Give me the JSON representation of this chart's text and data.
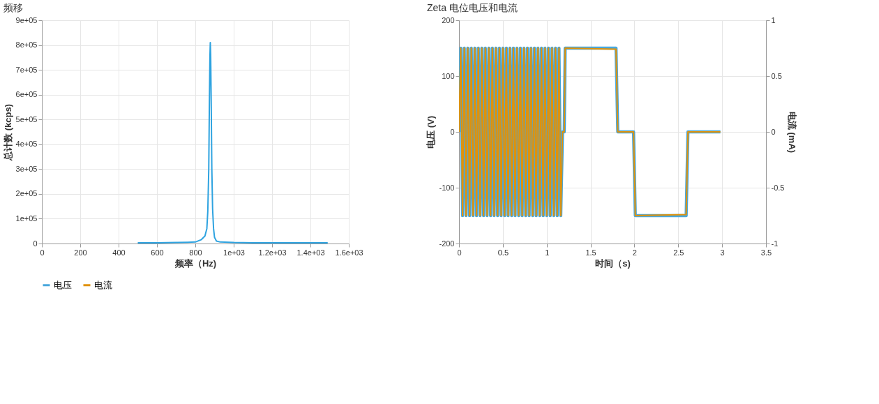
{
  "chart_data": [
    {
      "type": "line",
      "title": "频移",
      "xlabel": "频率（Hz)",
      "ylabel": "总计数 (kcps)",
      "x": [
        500,
        600,
        700,
        760,
        800,
        830,
        850,
        860,
        865,
        870,
        873,
        876,
        878,
        880,
        883,
        886,
        890,
        895,
        900,
        910,
        930,
        1000,
        1100,
        1200,
        1300,
        1400,
        1490
      ],
      "series": [
        {
          "color": "#2ea3e0",
          "values": [
            3000,
            3000,
            4000,
            5000,
            6000,
            15000,
            30000,
            60000,
            130000,
            300000,
            550000,
            750000,
            810000,
            760000,
            550000,
            300000,
            140000,
            60000,
            25000,
            10000,
            6000,
            4000,
            3000,
            3000,
            3000,
            3000,
            3000
          ]
        }
      ],
      "xlim": [
        0,
        1600
      ],
      "xticks": [
        0,
        200,
        400,
        600,
        800,
        {
          "value": 1000,
          "label": "1e+03"
        },
        {
          "value": 1200,
          "label": "1.2e+03"
        },
        {
          "value": 1400,
          "label": "1.4e+03"
        },
        {
          "value": 1600,
          "label": "1.6e+03"
        }
      ],
      "ylim": [
        0,
        900000
      ],
      "yticks": [
        0,
        {
          "value": 100000,
          "label": "1e+05"
        },
        {
          "value": 200000,
          "label": "2e+05"
        },
        {
          "value": 300000,
          "label": "3e+05"
        },
        {
          "value": 400000,
          "label": "4e+05"
        },
        {
          "value": 500000,
          "label": "5e+05"
        },
        {
          "value": 600000,
          "label": "6e+05"
        },
        {
          "value": 700000,
          "label": "7e+05"
        },
        {
          "value": 800000,
          "label": "8e+05"
        },
        {
          "value": 900000,
          "label": "9e+05"
        }
      ],
      "grid": true
    },
    {
      "type": "line",
      "title": "Zeta 电位电压和电流",
      "xlabel": "时间（s)",
      "ylabel": "电压 (V)",
      "y2label": "电流 (mA)",
      "x": [
        0,
        0.02,
        0.04,
        0.06,
        0.08,
        0.1,
        0.12,
        0.14,
        0.16,
        0.18,
        0.2,
        0.22,
        0.24,
        0.26,
        0.28,
        0.3,
        0.32,
        0.34,
        0.36,
        0.38,
        0.4,
        0.42,
        0.44,
        0.46,
        0.48,
        0.5,
        0.52,
        0.54,
        0.56,
        0.58,
        0.6,
        0.62,
        0.64,
        0.66,
        0.68,
        0.7,
        0.72,
        0.74,
        0.76,
        0.78,
        0.8,
        0.82,
        0.84,
        0.86,
        0.88,
        0.9,
        0.92,
        0.94,
        0.96,
        0.98,
        1.0,
        1.02,
        1.04,
        1.06,
        1.08,
        1.1,
        1.12,
        1.14,
        1.16,
        1.18,
        1.2,
        1.21,
        1.79,
        1.81,
        1.99,
        2.01,
        2.59,
        2.61,
        2.98
      ],
      "series": [
        {
          "name": "电压",
          "color": "#4aa8dc",
          "values": [
            0,
            150,
            -150,
            150,
            -150,
            150,
            -150,
            150,
            -150,
            150,
            -150,
            150,
            -150,
            150,
            -150,
            150,
            -150,
            150,
            -150,
            150,
            -150,
            150,
            -150,
            150,
            -150,
            150,
            -150,
            150,
            -150,
            150,
            -150,
            150,
            -150,
            150,
            -150,
            150,
            -150,
            150,
            -150,
            150,
            -150,
            150,
            -150,
            150,
            -150,
            150,
            -150,
            150,
            -150,
            150,
            -150,
            150,
            -150,
            150,
            -150,
            150,
            -150,
            150,
            -150,
            0,
            0,
            150,
            150,
            0,
            0,
            -150,
            -150,
            0,
            0
          ]
        },
        {
          "name": "电流",
          "color": "#e0920a",
          "axis": "y2",
          "values": [
            0,
            0.75,
            -0.75,
            0.75,
            -0.75,
            0.75,
            -0.75,
            0.75,
            -0.75,
            0.75,
            -0.75,
            0.75,
            -0.75,
            0.75,
            -0.75,
            0.75,
            -0.75,
            0.75,
            -0.75,
            0.75,
            -0.75,
            0.75,
            -0.75,
            0.75,
            -0.75,
            0.75,
            -0.75,
            0.75,
            -0.75,
            0.75,
            -0.75,
            0.75,
            -0.75,
            0.75,
            -0.75,
            0.75,
            -0.75,
            0.75,
            -0.75,
            0.75,
            -0.75,
            0.75,
            -0.75,
            0.75,
            -0.75,
            0.75,
            -0.75,
            0.75,
            -0.75,
            0.75,
            -0.75,
            0.75,
            -0.75,
            0.75,
            -0.75,
            0.75,
            -0.75,
            0.75,
            -0.75,
            0,
            0,
            0.75,
            0.74,
            0,
            0,
            -0.75,
            -0.74,
            0,
            0
          ]
        }
      ],
      "xlim": [
        0,
        3.5
      ],
      "xticks": [
        0,
        0.5,
        1,
        1.5,
        2,
        2.5,
        3,
        3.5
      ],
      "ylim": [
        -200,
        200
      ],
      "yticks": [
        -200,
        -100,
        0,
        100,
        200
      ],
      "y2lim": [
        -1,
        1
      ],
      "y2ticks": [
        -1,
        -0.5,
        0,
        0.5,
        1
      ],
      "grid": true,
      "legend": "bottom"
    }
  ]
}
